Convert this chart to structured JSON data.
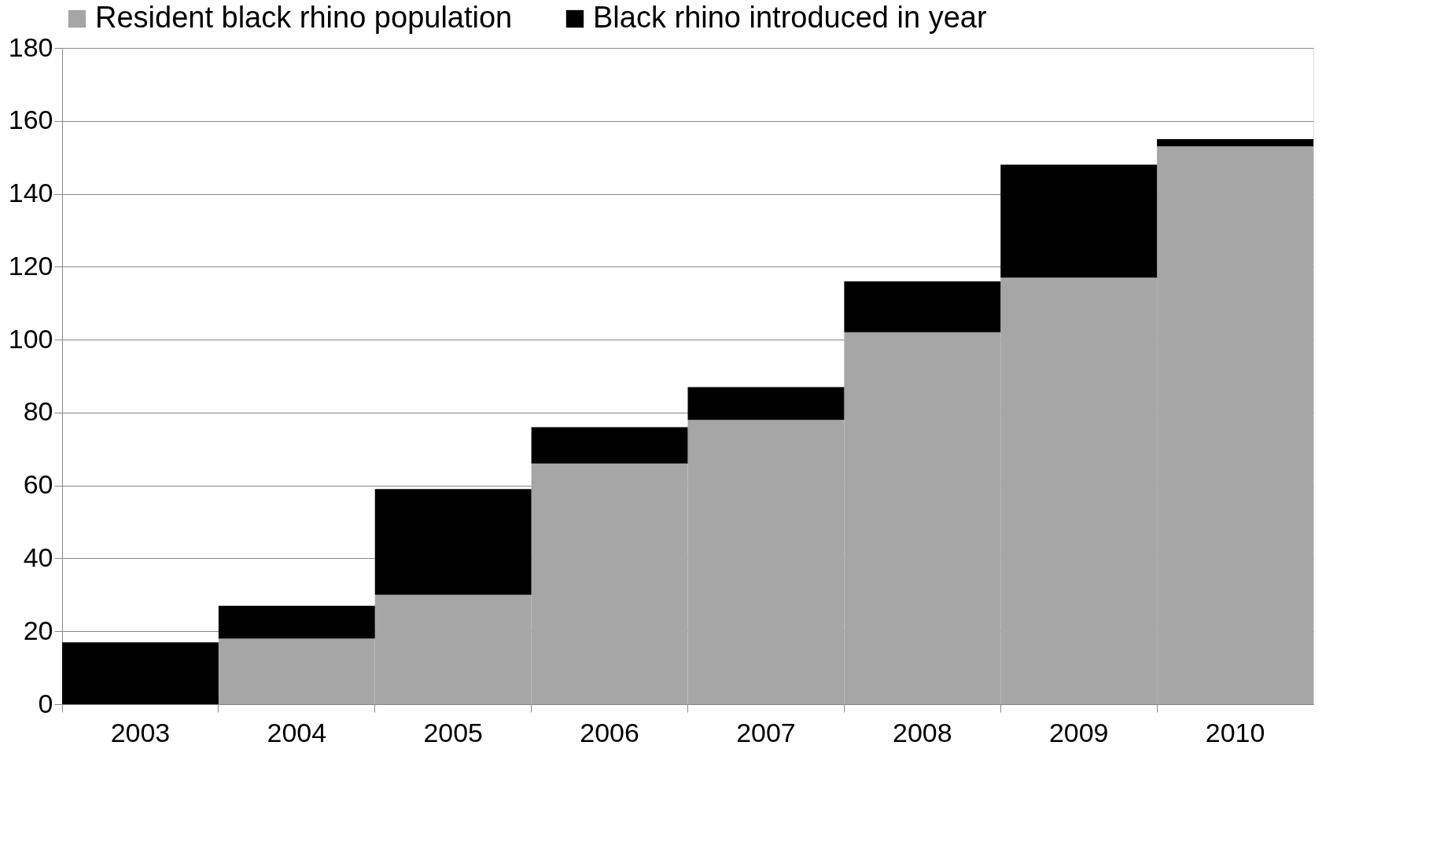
{
  "chart_data": {
    "type": "bar",
    "stacked": true,
    "categories": [
      "2003",
      "2004",
      "2005",
      "2006",
      "2007",
      "2008",
      "2009",
      "2010"
    ],
    "series": [
      {
        "name": "Resident black rhino population",
        "color": "#a6a6a6",
        "values": [
          0,
          18,
          30,
          66,
          78,
          102,
          117,
          153
        ]
      },
      {
        "name": "Black rhino introduced in year",
        "color": "#000000",
        "values": [
          17,
          9,
          29,
          10,
          9,
          14,
          31,
          2
        ]
      }
    ],
    "ylim": [
      0,
      180
    ],
    "yticks": [
      0,
      20,
      40,
      60,
      80,
      100,
      120,
      140,
      160,
      180
    ],
    "grid": "y",
    "legend": "top"
  }
}
